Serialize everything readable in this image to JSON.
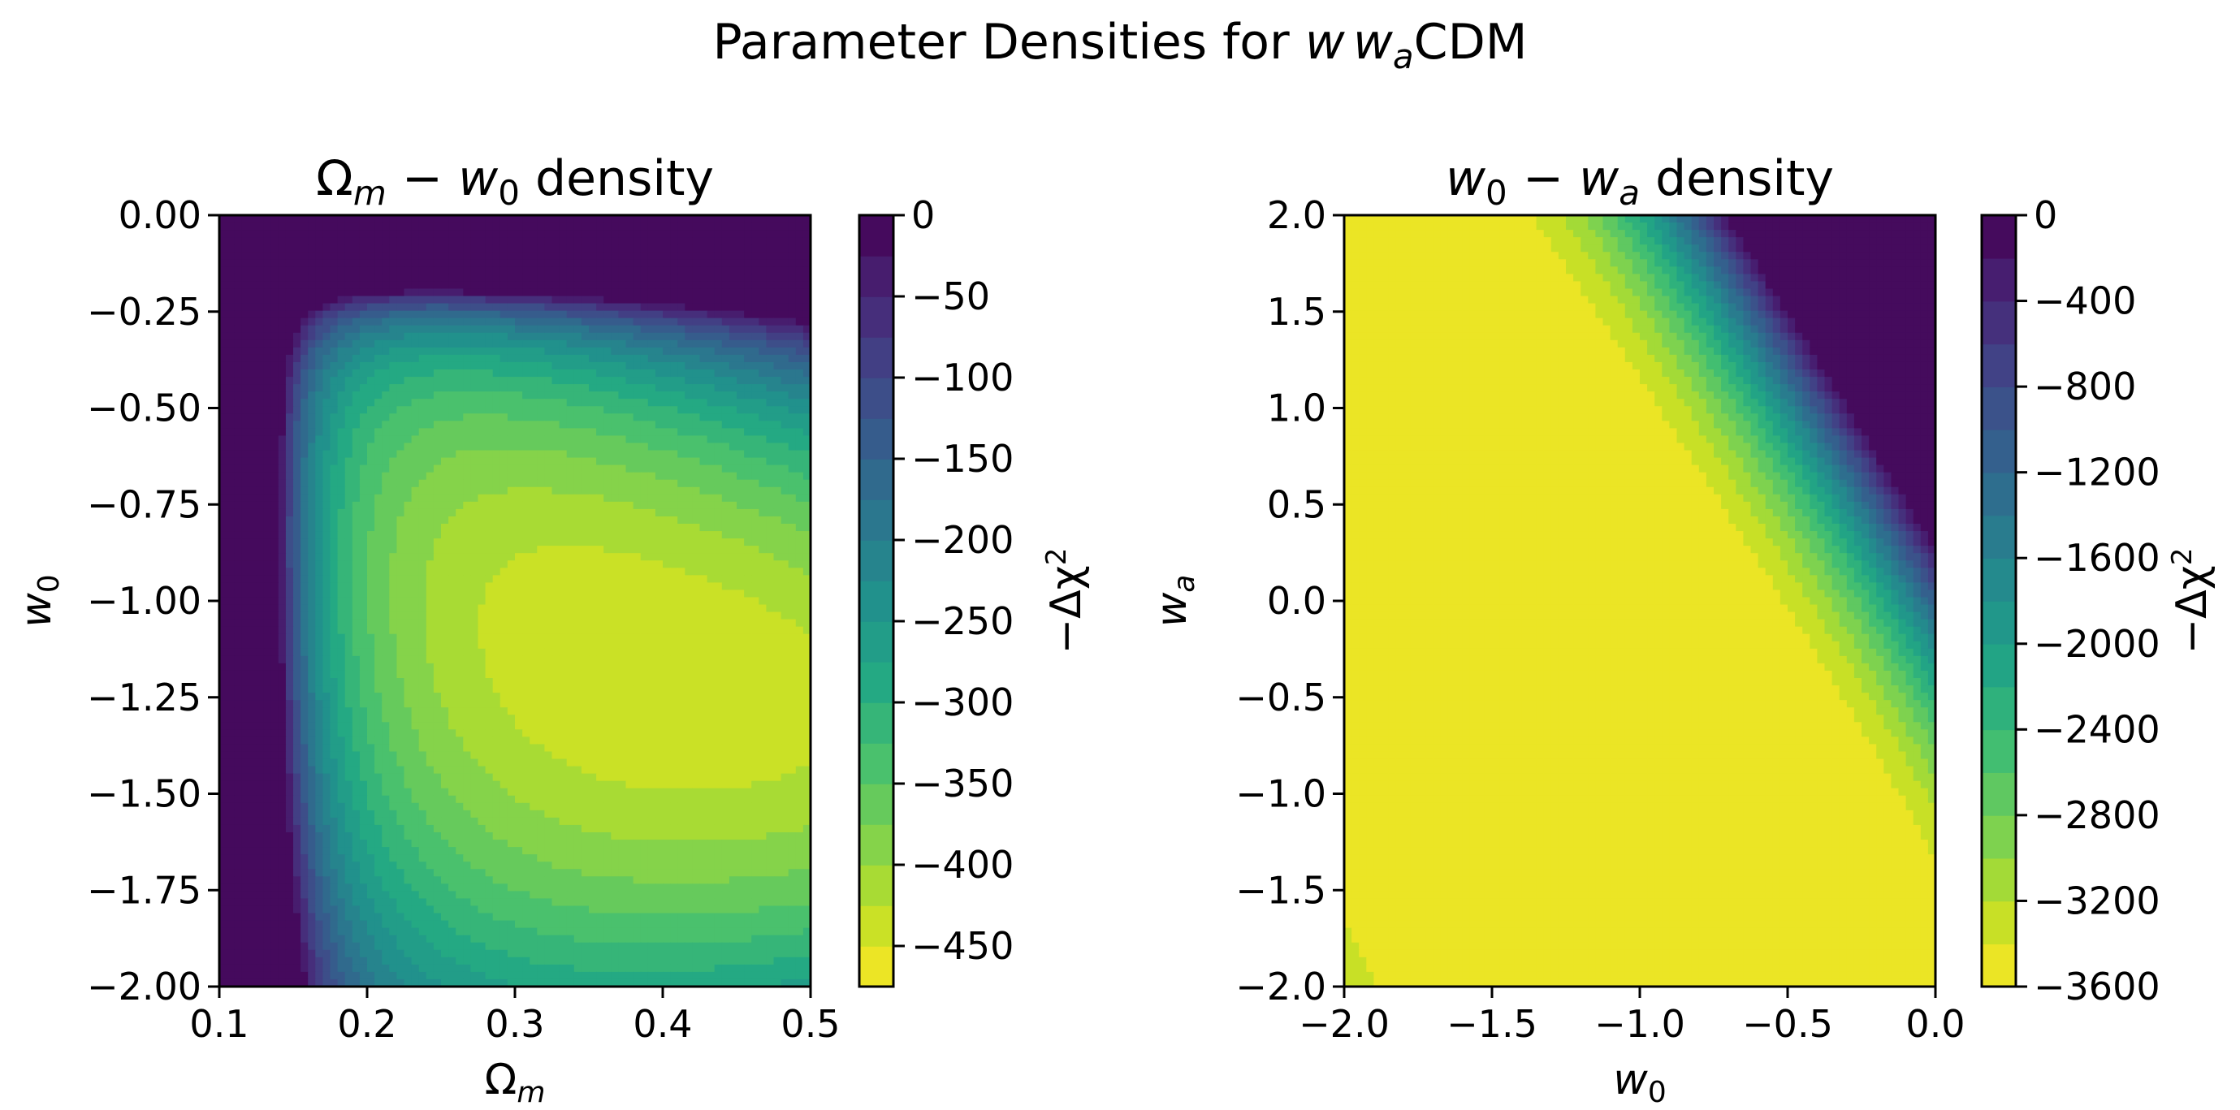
{
  "chart_data": {
    "title": "Parameter Densities for $w\\,w_a$CDM",
    "title_parts": {
      "prefix": "Parameter Densities for ",
      "w": "w",
      "wa_base": "w",
      "wa_sub": "a",
      "suffix": "CDM"
    },
    "panels": [
      {
        "type": "contourf",
        "title": "$\\Omega_m - w_0$ density",
        "title_parts": {
          "a": "Ω",
          "a_sub": "m",
          "minus": " − ",
          "b": "w",
          "b_sub": "0",
          "rest": " density"
        },
        "xlabel": "$\\Omega_m$",
        "xlabel_parts": {
          "base": "Ω",
          "sub": "m"
        },
        "ylabel": "$w_0$",
        "ylabel_parts": {
          "base": "w",
          "sub": "0"
        },
        "xlim": [
          0.1,
          0.5
        ],
        "ylim": [
          -2.0,
          0.0
        ],
        "x_ticks": [
          0.1,
          0.2,
          0.3,
          0.4,
          0.5
        ],
        "x_tick_labels": [
          "0.1",
          "0.2",
          "0.3",
          "0.4",
          "0.5"
        ],
        "y_ticks": [
          0.0,
          -0.25,
          -0.5,
          -0.75,
          -1.0,
          -1.25,
          -1.5,
          -1.75,
          -2.0
        ],
        "y_tick_labels": [
          "0.00",
          "−0.25",
          "−0.50",
          "−0.75",
          "−1.00",
          "−1.25",
          "−1.50",
          "−1.75",
          "−2.00"
        ],
        "colorbar": {
          "label": "$-\\Delta\\chi^2$",
          "label_text": "−Δχ",
          "label_sup": "2",
          "range": [
            -475,
            0
          ],
          "levels": [
            -475,
            -450,
            -425,
            -400,
            -375,
            -350,
            -325,
            -300,
            -275,
            -250,
            -225,
            -200,
            -175,
            -150,
            -125,
            -100,
            -75,
            -50,
            -25,
            0
          ],
          "ticks": [
            0,
            -50,
            -100,
            -150,
            -200,
            -250,
            -300,
            -350,
            -400,
            -450
          ],
          "tick_labels": [
            "0",
            "−50",
            "−100",
            "−150",
            "−200",
            "−250",
            "−300",
            "−350",
            "−400",
            "−450"
          ]
        },
        "peak": {
          "x": 0.3,
          "y": -1.05,
          "value": -470
        }
      },
      {
        "type": "contourf",
        "title": "$w_0 - w_a$ density",
        "title_parts": {
          "a": "w",
          "a_sub": "0",
          "minus": " − ",
          "b": "w",
          "b_sub": "a",
          "rest": " density"
        },
        "xlabel": "$w_0$",
        "xlabel_parts": {
          "base": "w",
          "sub": "0"
        },
        "ylabel": "$w_a$",
        "ylabel_parts": {
          "base": "w",
          "sub": "a"
        },
        "xlim": [
          -2.0,
          0.0
        ],
        "ylim": [
          -2.0,
          2.0
        ],
        "x_ticks": [
          -2.0,
          -1.5,
          -1.0,
          -0.5,
          0.0
        ],
        "x_tick_labels": [
          "−2.0",
          "−1.5",
          "−1.0",
          "−0.5",
          "0.0"
        ],
        "y_ticks": [
          2.0,
          1.5,
          1.0,
          0.5,
          0.0,
          -0.5,
          -1.0,
          -1.5,
          -2.0
        ],
        "y_tick_labels": [
          "2.0",
          "1.5",
          "1.0",
          "0.5",
          "0.0",
          "−0.5",
          "−1.0",
          "−1.5",
          "−2.0"
        ],
        "colorbar": {
          "label": "$-\\Delta\\chi^2$",
          "label_text": "−Δχ",
          "label_sup": "2",
          "range": [
            -3600,
            0
          ],
          "levels": [
            -3600,
            -3400,
            -3200,
            -3000,
            -2800,
            -2600,
            -2400,
            -2200,
            -2000,
            -1800,
            -1600,
            -1400,
            -1200,
            -1000,
            -800,
            -600,
            -400,
            -200,
            0
          ],
          "ticks": [
            0,
            -400,
            -800,
            -1200,
            -1600,
            -2000,
            -2400,
            -2800,
            -3200,
            -3600
          ],
          "tick_labels": [
            "0",
            "−400",
            "−800",
            "−1200",
            "−1600",
            "−2000",
            "−2400",
            "−2800",
            "−3200",
            "−3600"
          ]
        },
        "peak": {
          "x": -1.0,
          "y": -0.5,
          "value": -3550
        }
      }
    ]
  }
}
